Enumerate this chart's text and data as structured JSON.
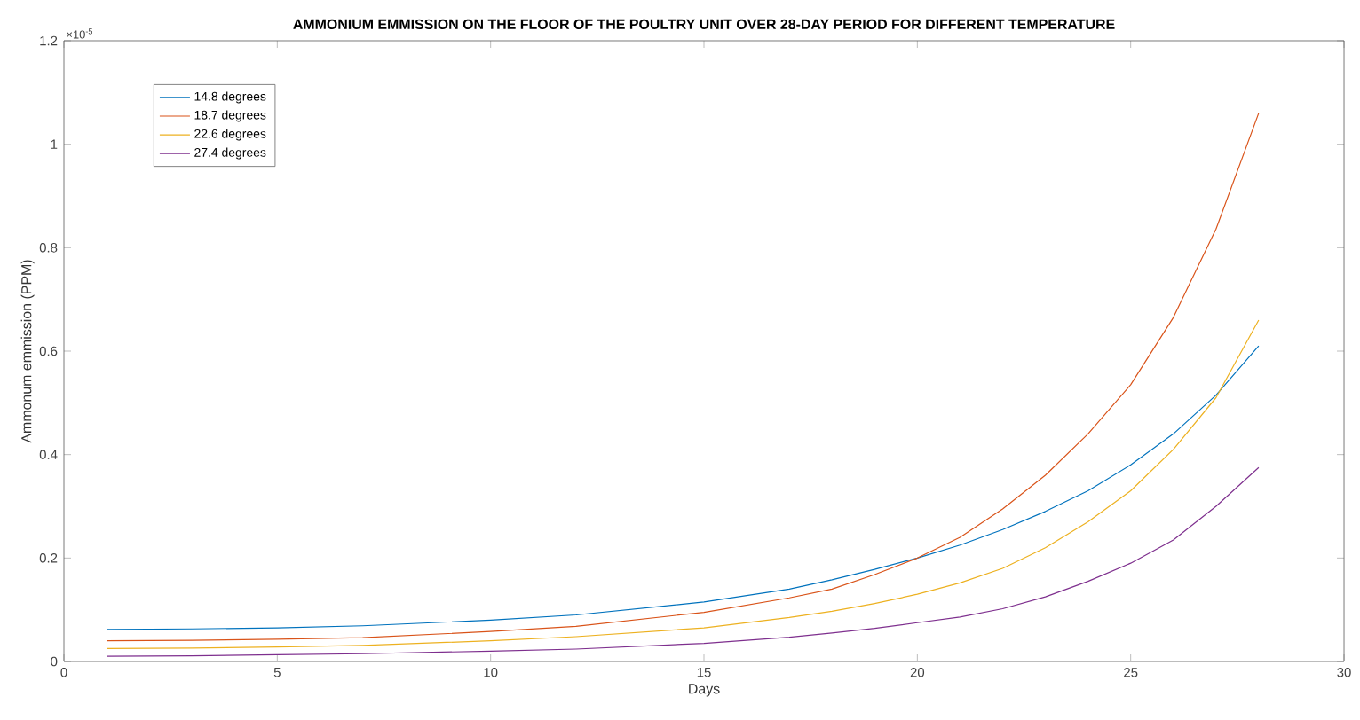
{
  "chart_data": {
    "type": "line",
    "title": "AMMONIUM EMMISSION ON THE FLOOR OF THE POULTRY UNIT OVER 28-DAY PERIOD FOR DIFFERENT TEMPERATURE",
    "xlabel": "Days",
    "ylabel": "Ammonum emmission (PPM)",
    "annotations": [
      "×10$^{-5}$"
    ],
    "x": [
      1,
      3,
      5,
      7,
      10,
      12,
      15,
      17,
      18,
      19,
      20,
      21,
      22,
      23,
      24,
      25,
      26,
      27,
      28
    ],
    "series": [
      {
        "name": "14.8 degrees",
        "color": "#0072bd",
        "values": [
          0.062,
          0.063,
          0.065,
          0.069,
          0.08,
          0.09,
          0.115,
          0.14,
          0.158,
          0.178,
          0.2,
          0.225,
          0.255,
          0.29,
          0.33,
          0.38,
          0.44,
          0.515,
          0.61
        ]
      },
      {
        "name": "18.7 degrees",
        "color": "#d95319",
        "values": [
          0.04,
          0.041,
          0.043,
          0.046,
          0.058,
          0.068,
          0.095,
          0.123,
          0.14,
          0.168,
          0.2,
          0.24,
          0.295,
          0.36,
          0.44,
          0.535,
          0.665,
          0.836,
          1.06
        ]
      },
      {
        "name": "22.6 degrees",
        "color": "#edb120",
        "values": [
          0.025,
          0.026,
          0.028,
          0.031,
          0.04,
          0.048,
          0.065,
          0.085,
          0.097,
          0.112,
          0.13,
          0.152,
          0.18,
          0.22,
          0.27,
          0.33,
          0.41,
          0.51,
          0.66
        ]
      },
      {
        "name": "27.4 degrees",
        "color": "#7e2f8e",
        "values": [
          0.01,
          0.011,
          0.013,
          0.015,
          0.02,
          0.024,
          0.035,
          0.047,
          0.055,
          0.064,
          0.075,
          0.086,
          0.102,
          0.125,
          0.155,
          0.19,
          0.235,
          0.3,
          0.375
        ]
      }
    ],
    "xlim": [
      0,
      30
    ],
    "xticks": [
      0,
      5,
      10,
      15,
      20,
      25,
      30
    ],
    "ylim": [
      0,
      1.2
    ],
    "yticks": [
      0,
      0.2,
      0.4,
      0.6,
      0.8,
      1,
      1.2
    ],
    "legend": "top left",
    "grid": false,
    "marker": "none",
    "line_style": "solid"
  }
}
